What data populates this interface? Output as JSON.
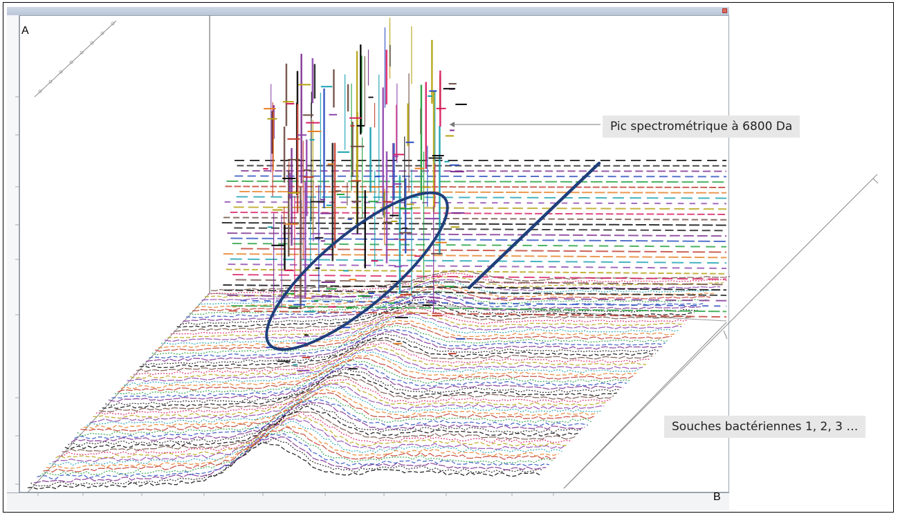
{
  "labels": {
    "panel_a": "A",
    "panel_b": "B"
  },
  "annotations": {
    "peak": "Pic spectrométrique à 6800 Da",
    "strains": "Souches bactériennes 1, 2, 3 …"
  },
  "colors": {
    "highlight": "#1f3f7a",
    "annotation_bg": "#e7e7e7",
    "spectra": [
      "#000000",
      "#1a1a1a",
      "#7b2c8f",
      "#2a4dbf",
      "#1e9e3a",
      "#c0392b",
      "#e67e22",
      "#16a0b0",
      "#8e44ad",
      "#b5a10e",
      "#d81b60",
      "#6d4c41"
    ]
  },
  "chart_data": {
    "type": "area",
    "series_count": 60,
    "peak_mass_da": 6800
  }
}
